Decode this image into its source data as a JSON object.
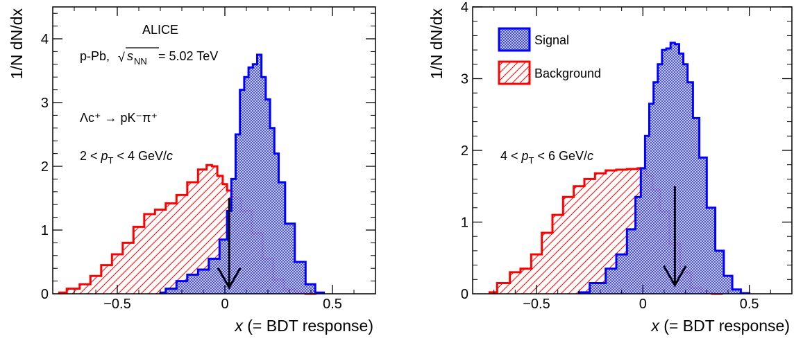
{
  "chart_data": [
    {
      "type": "area",
      "xlabel_var": "x",
      "xlabel_rest": " (= BDT response)",
      "ylabel": "1/N dN/dx",
      "xlim": [
        -0.8,
        0.7
      ],
      "ylim": [
        0,
        4.5
      ],
      "xticks": [
        {
          "v": -0.5,
          "l": "−0.5"
        },
        {
          "v": 0,
          "l": "0"
        },
        {
          "v": 0.5,
          "l": "0.5"
        }
      ],
      "yticks": [
        {
          "v": 1,
          "l": "1"
        },
        {
          "v": 2,
          "l": "2"
        },
        {
          "v": 3,
          "l": "3"
        },
        {
          "v": 4,
          "l": "4"
        }
      ],
      "annotations": {
        "experiment": "ALICE",
        "system_prefix": "p-Pb, ",
        "sqrt_sym": "√",
        "s_sym": "s",
        "nn_sub": "NN",
        "energy": " = 5.02 TeV",
        "decay": "Λc⁺ → pK⁻π⁺",
        "pt_pre": "2 < ",
        "pt_p": "p",
        "pt_sub": "T",
        "pt_post": " < 4 GeV/",
        "pt_c": "c"
      },
      "cut_arrow": {
        "x": 0.02,
        "y_top": 1.5,
        "y_bottom": 0.1
      },
      "series": [
        {
          "name": "Signal",
          "color": "#0000ff",
          "fill": "blue-crosshatch",
          "x": [
            -0.3,
            -0.25,
            -0.2,
            -0.15,
            -0.1,
            -0.05,
            0,
            0.02,
            0.04,
            0.06,
            0.08,
            0.1,
            0.12,
            0.14,
            0.16,
            0.18,
            0.2,
            0.22,
            0.24,
            0.26,
            0.3,
            0.35,
            0.4,
            0.44
          ],
          "y": [
            0.02,
            0.08,
            0.2,
            0.3,
            0.38,
            0.55,
            0.85,
            1.3,
            1.8,
            2.5,
            3.2,
            3.4,
            3.55,
            3.6,
            3.75,
            3.4,
            3.05,
            2.6,
            2.2,
            1.75,
            1.1,
            0.5,
            0.15,
            0.02
          ]
        },
        {
          "name": "Background",
          "color": "#ff0000",
          "fill": "red-hatch",
          "x": [
            -0.77,
            -0.7,
            -0.65,
            -0.6,
            -0.55,
            -0.5,
            -0.45,
            -0.4,
            -0.35,
            -0.3,
            -0.25,
            -0.2,
            -0.15,
            -0.1,
            -0.07,
            -0.05,
            -0.02,
            0,
            0.02,
            0.05,
            0.1,
            0.15,
            0.2,
            0.25,
            0.3,
            0.35,
            0.4
          ],
          "y": [
            0.02,
            0.08,
            0.15,
            0.28,
            0.45,
            0.62,
            0.8,
            1.05,
            1.25,
            1.32,
            1.42,
            1.55,
            1.75,
            1.95,
            2.02,
            2.0,
            1.85,
            1.72,
            1.62,
            1.5,
            1.3,
            0.95,
            0.55,
            0.22,
            0.07,
            0.02,
            0.0
          ]
        }
      ]
    },
    {
      "type": "area",
      "xlabel_var": "x",
      "xlabel_rest": " (= BDT response)",
      "ylabel": "1/N dN/dx",
      "xlim": [
        -0.8,
        0.7
      ],
      "ylim": [
        0,
        4
      ],
      "xticks": [
        {
          "v": -0.5,
          "l": "−0.5"
        },
        {
          "v": 0,
          "l": "0"
        },
        {
          "v": 0.5,
          "l": "0.5"
        }
      ],
      "yticks": [
        {
          "v": 1,
          "l": "1"
        },
        {
          "v": 2,
          "l": "2"
        },
        {
          "v": 3,
          "l": "3"
        },
        {
          "v": 4,
          "l": "4"
        }
      ],
      "annotations": {
        "pt_pre": "4 < ",
        "pt_p": "p",
        "pt_sub": "T",
        "pt_post": " < 6 GeV/",
        "pt_c": "c"
      },
      "legend": {
        "position": "top-left",
        "entries": [
          "Signal",
          "Background"
        ]
      },
      "cut_arrow": {
        "x": 0.15,
        "y_top": 1.5,
        "y_bottom": 0.12
      },
      "series": [
        {
          "name": "Signal",
          "color": "#0000ff",
          "fill": "blue-crosshatch",
          "x": [
            -0.3,
            -0.2,
            -0.15,
            -0.1,
            -0.05,
            -0.02,
            0,
            0.02,
            0.04,
            0.06,
            0.08,
            0.1,
            0.12,
            0.14,
            0.16,
            0.18,
            0.2,
            0.22,
            0.25,
            0.28,
            0.32,
            0.36,
            0.4,
            0.44,
            0.48
          ],
          "y": [
            0.02,
            0.15,
            0.35,
            0.55,
            0.9,
            1.35,
            1.75,
            2.2,
            2.65,
            2.95,
            3.2,
            3.4,
            3.42,
            3.5,
            3.48,
            3.35,
            3.2,
            2.95,
            2.45,
            1.9,
            1.2,
            0.6,
            0.25,
            0.06,
            0.01
          ]
        },
        {
          "name": "Background",
          "color": "#ff0000",
          "fill": "red-hatch",
          "x": [
            -0.72,
            -0.65,
            -0.6,
            -0.55,
            -0.5,
            -0.45,
            -0.4,
            -0.35,
            -0.3,
            -0.25,
            -0.2,
            -0.15,
            -0.1,
            -0.05,
            0,
            0.03,
            0.06,
            0.1,
            0.15,
            0.2,
            0.25,
            0.3,
            0.35
          ],
          "y": [
            0.02,
            0.15,
            0.3,
            0.35,
            0.55,
            0.85,
            1.1,
            1.35,
            1.5,
            1.6,
            1.68,
            1.72,
            1.73,
            1.74,
            1.75,
            1.65,
            1.45,
            1.15,
            0.7,
            0.3,
            0.08,
            0.02,
            0.0
          ]
        }
      ]
    }
  ]
}
